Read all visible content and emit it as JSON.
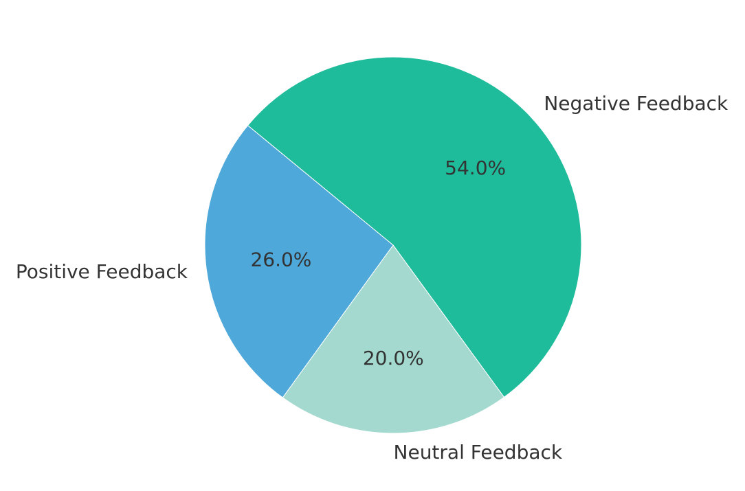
{
  "chart_data": {
    "type": "pie",
    "title": "",
    "categories": [
      "Negative Feedback",
      "Neutral Feedback",
      "Positive Feedback"
    ],
    "values": [
      54.0,
      20.0,
      26.0
    ],
    "value_labels": [
      "54.0%",
      "20.0%",
      "26.0%"
    ],
    "colors": [
      "#1fbc9c",
      "#a3d9ce",
      "#4ea8d9"
    ],
    "legend": "none",
    "grid": false
  }
}
